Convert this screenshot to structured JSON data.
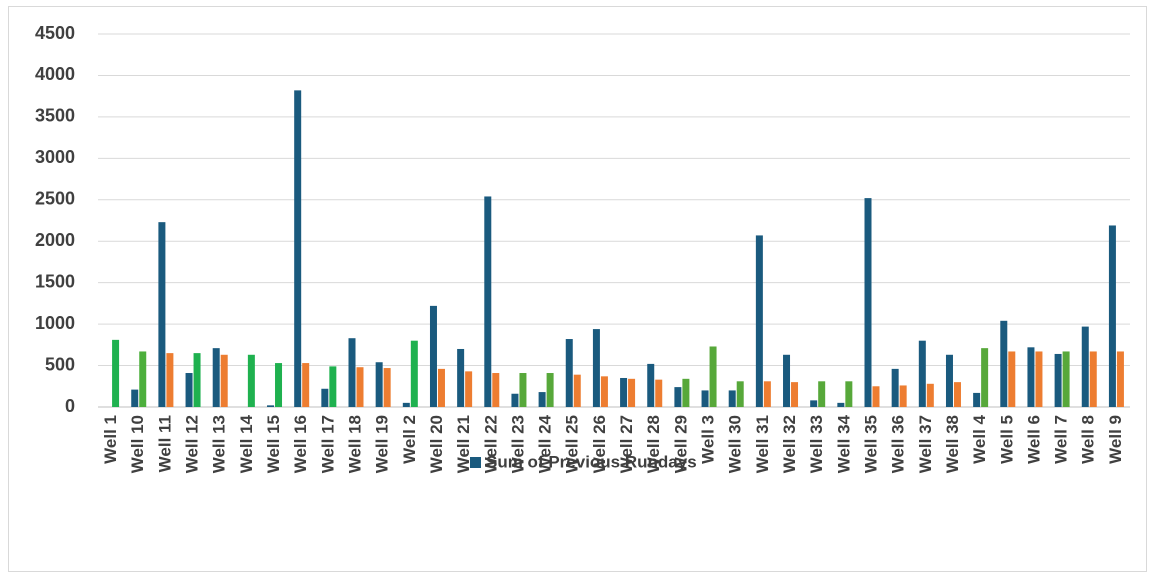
{
  "chart_data": {
    "type": "bar",
    "categories": [
      "Well 1",
      "Well 10",
      "Well 11",
      "Well 12",
      "Well 13",
      "Well 14",
      "Well 15",
      "Well 16",
      "Well 17",
      "Well 18",
      "Well 19",
      "Well 2",
      "Well 20",
      "Well 21",
      "Well 22",
      "Well 23",
      "Well 24",
      "Well 25",
      "Well 26",
      "Well 27",
      "Well 28",
      "Well 29",
      "Well 3",
      "Well 30",
      "Well 31",
      "Well 32",
      "Well 33",
      "Well 34",
      "Well 35",
      "Well 36",
      "Well 37",
      "Well 38",
      "Well 4",
      "Well 5",
      "Well 6",
      "Well 7",
      "Well 8",
      "Well 9"
    ],
    "series": [
      {
        "name": "Sum of Previous Rundays",
        "color": "#1a5a7e",
        "values": [
          0,
          210,
          2230,
          410,
          710,
          0,
          20,
          3820,
          220,
          830,
          540,
          50,
          1220,
          700,
          2540,
          160,
          180,
          820,
          940,
          350,
          520,
          240,
          200,
          200,
          2070,
          630,
          80,
          50,
          2520,
          460,
          800,
          630,
          170,
          1040,
          720,
          640,
          970,
          2190
        ]
      },
      {
        "colors": [
          "#1fb14f",
          "#4caf3c",
          "#ed7d31",
          "#1fb14f",
          "#ed7d31",
          "#1fb14f",
          "#1fb14f",
          "#ed7d31",
          "#1fb14f",
          "#ed7d31",
          "#ed7d31",
          "#1fb14f",
          "#ed7d31",
          "#ed7d31",
          "#ed7d31",
          "#57a83a",
          "#57a83a",
          "#ed7d31",
          "#ed7d31",
          "#ed7d31",
          "#ed7d31",
          "#57a83a",
          "#57a83a",
          "#57a83a",
          "#ed7d31",
          "#ed7d31",
          "#57a83a",
          "#57a83a",
          "#ed7d31",
          "#ed7d31",
          "#ed7d31",
          "#ed7d31",
          "#57a83a",
          "#ed7d31",
          "#ed7d31",
          "#57a83a",
          "#ed7d31",
          "#ed7d31"
        ],
        "values": [
          810,
          670,
          650,
          650,
          630,
          630,
          530,
          530,
          490,
          480,
          470,
          800,
          460,
          430,
          410,
          410,
          410,
          390,
          370,
          340,
          330,
          340,
          730,
          310,
          310,
          300,
          310,
          310,
          250,
          260,
          280,
          300,
          710,
          670,
          670,
          670,
          670,
          670
        ]
      }
    ],
    "ylim": [
      0,
      4500
    ],
    "yticks": [
      0,
      500,
      1000,
      1500,
      2000,
      2500,
      3000,
      3500,
      4000,
      4500
    ],
    "grid": true,
    "legend": "bottom"
  }
}
